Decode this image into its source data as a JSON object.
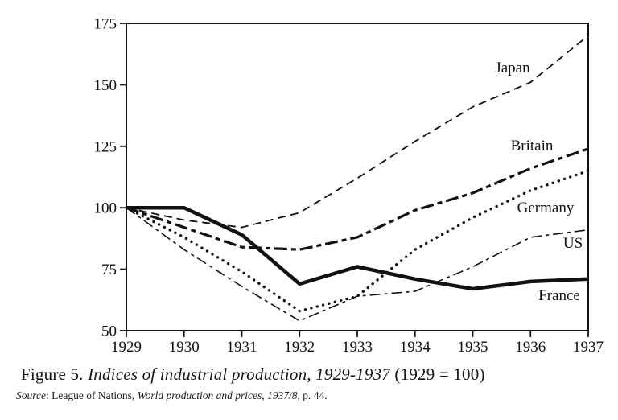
{
  "figure": {
    "caption": {
      "prefix": "Figure 5. ",
      "italic_part": "Indices of industrial production, 1929-1937 ",
      "suffix": "(1929 = 100)"
    },
    "source": {
      "label": "Source",
      "mid": ": League of Nations, ",
      "title": "World production and prices, 1937/8",
      "end": ", p. 44."
    }
  },
  "chart_data": {
    "type": "line",
    "title": "Indices of industrial production, 1929-1937 (1929 = 100)",
    "xlabel": "",
    "ylabel": "",
    "x": [
      1929,
      1930,
      1931,
      1932,
      1933,
      1934,
      1935,
      1936,
      1937
    ],
    "ylim": [
      50,
      175
    ],
    "yticks": [
      50,
      75,
      100,
      125,
      150,
      175
    ],
    "grid": false,
    "legend_position": "inline-labels",
    "line_color": "#111111",
    "series": [
      {
        "name": "Japan",
        "style": "dashed",
        "values": [
          100,
          95,
          92,
          98,
          112,
          127,
          141,
          151,
          170
        ]
      },
      {
        "name": "Britain",
        "style": "long-dash-short-dash",
        "values": [
          100,
          92,
          84,
          83,
          88,
          99,
          106,
          116,
          124
        ]
      },
      {
        "name": "Germany",
        "style": "dotted",
        "values": [
          100,
          88,
          74,
          58,
          64,
          83,
          96,
          107,
          115
        ]
      },
      {
        "name": "US",
        "style": "thin-dash-dot",
        "values": [
          100,
          83,
          68,
          54,
          64,
          66,
          76,
          88,
          91
        ]
      },
      {
        "name": "France",
        "style": "solid-bold",
        "values": [
          100,
          100,
          89,
          69,
          76,
          71,
          67,
          70,
          71
        ]
      }
    ]
  }
}
